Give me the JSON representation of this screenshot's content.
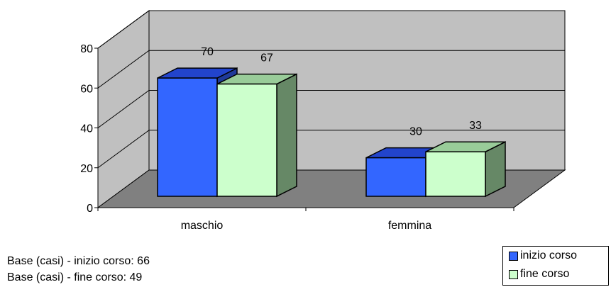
{
  "chart_data": {
    "type": "bar",
    "style": "3d-clustered-column",
    "categories": [
      "maschio",
      "femmina"
    ],
    "series": [
      {
        "name": "inizio corso",
        "values": [
          70,
          30
        ]
      },
      {
        "name": "fine corso",
        "values": [
          67,
          33
        ]
      }
    ],
    "ylim": [
      0,
      80
    ],
    "yticks": [
      0,
      20,
      40,
      60,
      80
    ],
    "grid": true,
    "legend_position": "bottom-right",
    "data_labels": true
  },
  "colors": {
    "series_front": [
      "#3366FF",
      "#CCFFCC"
    ],
    "series_top": [
      "#2244CC",
      "#99CC99"
    ],
    "series_side": [
      "#1F3A99",
      "#668866"
    ],
    "back_wall": "#C0C0C0",
    "side_wall": "#C0C0C0",
    "floor": "#808080"
  },
  "notes": [
    "Base (casi) - inizio corso: 66",
    "Base (casi) - fine corso: 49"
  ]
}
